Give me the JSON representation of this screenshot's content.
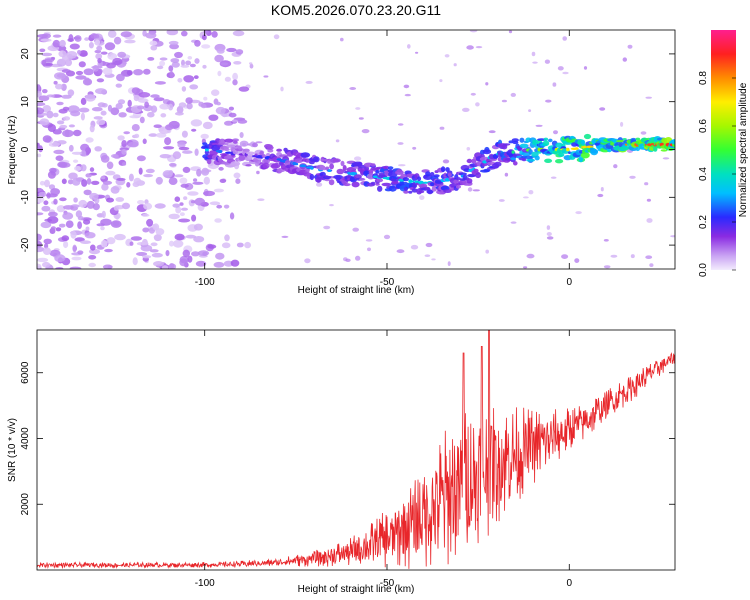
{
  "title": "KOM5.2026.070.23.20.G11",
  "chart_data": [
    {
      "type": "heatmap",
      "title": "KOM5.2026.070.23.20.G11",
      "xlabel": "Height of straight line (km)",
      "ylabel": "Frequency (Hz)",
      "xlim": [
        -146,
        29
      ],
      "ylim": [
        -25,
        25
      ],
      "xticks": [
        -100,
        -50,
        0
      ],
      "xtick_labels": [
        "-100",
        "-50",
        "0"
      ],
      "yticks": [
        -20,
        -10,
        0,
        10,
        20
      ],
      "ytick_labels": [
        "-20",
        "-10",
        "0",
        "10",
        "20"
      ],
      "colorbar": {
        "label": "Normalized spectral amplitude",
        "range": [
          0,
          1
        ],
        "ticks": [
          0.0,
          0.2,
          0.4,
          0.6,
          0.8
        ],
        "tick_labels": [
          "0.0",
          "0.2",
          "0.4",
          "0.6",
          "0.8"
        ]
      },
      "ridge": {
        "x": [
          -100,
          -90,
          -80,
          -70,
          -60,
          -50,
          -40,
          -30,
          -20,
          -10,
          0,
          10,
          20,
          29
        ],
        "freq": [
          0,
          -1,
          -2,
          -4,
          -5,
          -6,
          -7,
          -6,
          -1,
          0,
          0,
          1,
          1,
          1
        ],
        "amplitude": [
          0.35,
          0.15,
          0.25,
          0.3,
          0.3,
          0.35,
          0.35,
          0.3,
          0.35,
          0.55,
          0.7,
          0.75,
          0.85,
          0.9
        ]
      },
      "noise_region": {
        "x_from": -146,
        "x_to": -88,
        "amplitude": 0.1
      }
    },
    {
      "type": "line",
      "xlabel": "Height of straight line (km)",
      "ylabel": "SNR (10 * v/v)",
      "xlim": [
        -146,
        29
      ],
      "ylim": [
        0,
        7300
      ],
      "xticks": [
        -100,
        -50,
        0
      ],
      "xtick_labels": [
        "-100",
        "-50",
        "0"
      ],
      "yticks": [
        2000,
        4000,
        6000
      ],
      "ytick_labels": [
        "2000",
        "4000",
        "6000"
      ],
      "series": [
        {
          "name": "SNR",
          "color": "#e8262a",
          "x": [
            -146,
            -120,
            -100,
            -90,
            -80,
            -70,
            -60,
            -55,
            -50,
            -45,
            -40,
            -35,
            -30,
            -25,
            -20,
            -15,
            -10,
            -5,
            0,
            5,
            10,
            15,
            20,
            25,
            29
          ],
          "base": [
            150,
            150,
            160,
            180,
            230,
            350,
            550,
            750,
            950,
            1250,
            1650,
            2100,
            2550,
            2900,
            3200,
            3500,
            3750,
            4000,
            4250,
            4600,
            5000,
            5400,
            5800,
            6200,
            6500
          ],
          "spread": [
            80,
            80,
            80,
            100,
            120,
            250,
            450,
            650,
            900,
            1300,
            1700,
            2100,
            2300,
            2200,
            1900,
            1500,
            1200,
            900,
            700,
            600,
            500,
            450,
            400,
            300,
            200
          ],
          "peak_x": [
            -29,
            -24,
            -22
          ],
          "peak_y": [
            6600,
            6800,
            7300
          ]
        }
      ]
    }
  ]
}
